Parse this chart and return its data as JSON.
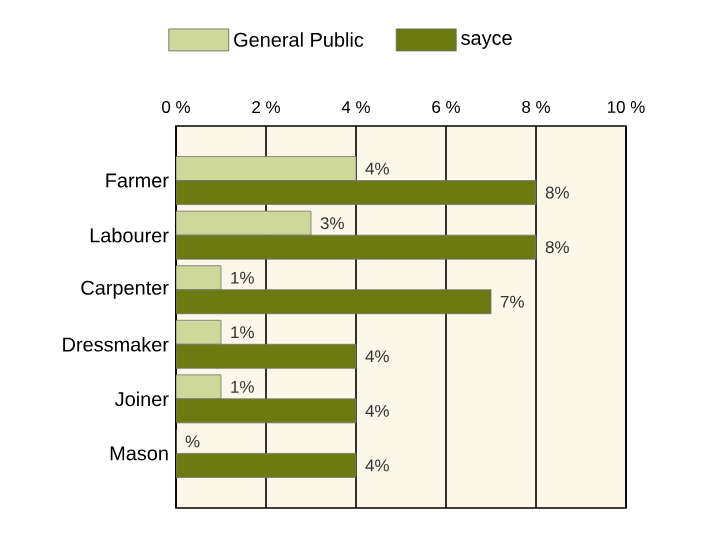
{
  "chart_data": {
    "type": "bar",
    "orientation": "horizontal",
    "categories": [
      "Farmer",
      "Labourer",
      "Carpenter",
      "Dressmaker",
      "Joiner",
      "Mason"
    ],
    "series": [
      {
        "name": "General Public",
        "color": "#cdd89a",
        "values": [
          4,
          3,
          1,
          1,
          1,
          0
        ],
        "value_labels": [
          "4%",
          "3%",
          "1%",
          "1%",
          "1%",
          "%"
        ]
      },
      {
        "name": "sayce",
        "color": "#6b7b12",
        "values": [
          8,
          8,
          7,
          4,
          4,
          4
        ],
        "value_labels": [
          "8%",
          "8%",
          "7%",
          "4%",
          "4%",
          "4%"
        ]
      }
    ],
    "xlim": [
      0,
      10
    ],
    "xticks": [
      {
        "value": 0,
        "label": "0 %"
      },
      {
        "value": 2,
        "label": "2 %"
      },
      {
        "value": 4,
        "label": "4 %"
      },
      {
        "value": 6,
        "label": "6 %"
      },
      {
        "value": 8,
        "label": "8 %"
      },
      {
        "value": 10,
        "label": "10 %"
      }
    ],
    "grid": "x",
    "legend": "top"
  }
}
